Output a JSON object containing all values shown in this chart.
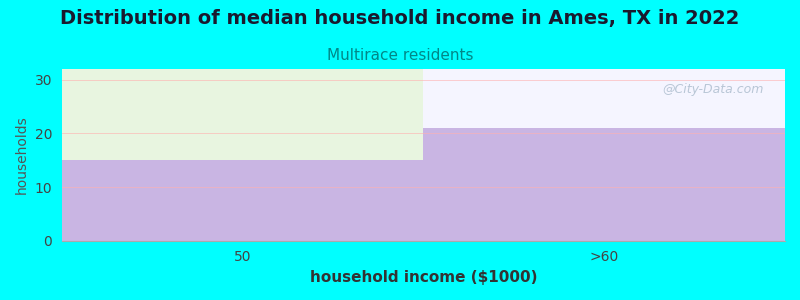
{
  "title": "Distribution of median household income in Ames, TX in 2022",
  "subtitle": "Multirace residents",
  "xlabel": "household income ($1000)",
  "ylabel": "households",
  "categories": [
    "50",
    ">60"
  ],
  "values": [
    15,
    21
  ],
  "bar_color": "#C9B5E3",
  "background_color": "#00FFFF",
  "plot_bg_left": "#E8F5E0",
  "plot_bg_right": "#F5F5FF",
  "title_fontsize": 14,
  "title_color": "#1a1a2e",
  "subtitle_fontsize": 11,
  "subtitle_color": "#008888",
  "xlabel_fontsize": 11,
  "ylabel_fontsize": 10,
  "tick_fontsize": 10,
  "ylim": [
    0,
    32
  ],
  "yticks": [
    0,
    10,
    20,
    30
  ],
  "watermark": "@City-Data.com",
  "watermark_color": "#AABBCC"
}
